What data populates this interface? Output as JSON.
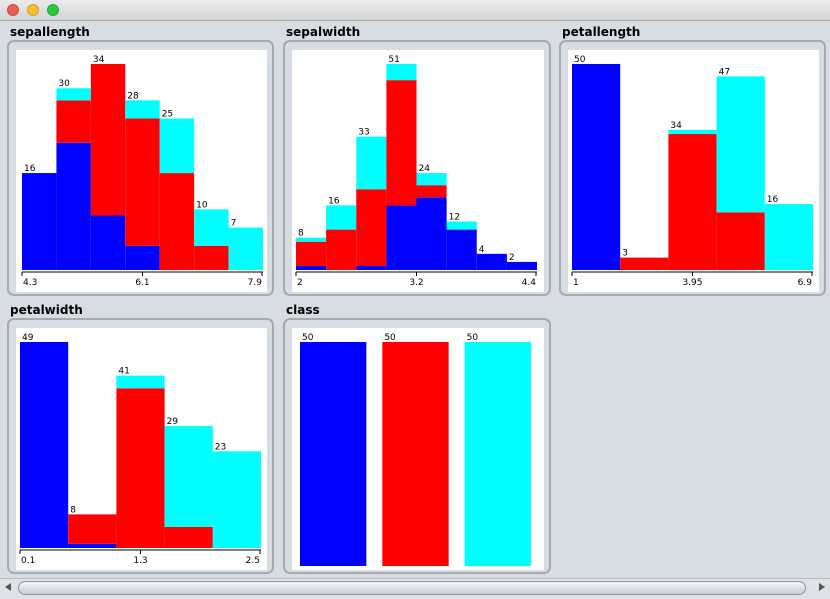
{
  "window": {
    "title": ""
  },
  "colors": {
    "setosa": "#0000ff",
    "versicolor": "#ff0000",
    "virginica": "#00ffff"
  },
  "chart_data": [
    {
      "id": "sepallength",
      "type": "bar",
      "stacked": true,
      "title": "sepallength",
      "ticks": [
        "4.3",
        "6.1",
        "7.9"
      ],
      "totals": [
        16,
        30,
        34,
        28,
        25,
        10,
        7
      ],
      "series": [
        {
          "name": "",
          "color": "#0000ff",
          "values": [
            16,
            21,
            9,
            4,
            0,
            0,
            0
          ]
        },
        {
          "name": "",
          "color": "#ff0000",
          "values": [
            0,
            7,
            25,
            21,
            16,
            4,
            0
          ]
        },
        {
          "name": "",
          "color": "#00ffff",
          "values": [
            0,
            2,
            0,
            3,
            9,
            6,
            7
          ]
        }
      ]
    },
    {
      "id": "sepalwidth",
      "type": "bar",
      "stacked": true,
      "title": "sepalwidth",
      "ticks": [
        "2",
        "3.2",
        "4.4"
      ],
      "totals": [
        8,
        16,
        33,
        51,
        24,
        12,
        4,
        2
      ],
      "series": [
        {
          "name": "",
          "color": "#0000ff",
          "values": [
            1,
            0,
            1,
            16,
            18,
            10,
            4,
            2
          ]
        },
        {
          "name": "",
          "color": "#ff0000",
          "values": [
            6,
            10,
            19,
            31,
            3,
            0,
            0,
            0
          ]
        },
        {
          "name": "",
          "color": "#00ffff",
          "values": [
            1,
            6,
            13,
            4,
            3,
            2,
            0,
            0
          ]
        }
      ]
    },
    {
      "id": "petallength",
      "type": "bar",
      "stacked": true,
      "title": "petallength",
      "ticks": [
        "1",
        "3.95",
        "6.9"
      ],
      "totals": [
        50,
        3,
        34,
        47,
        16
      ],
      "series": [
        {
          "name": "",
          "color": "#0000ff",
          "values": [
            50,
            0,
            0,
            0,
            0
          ]
        },
        {
          "name": "",
          "color": "#ff0000",
          "values": [
            0,
            3,
            33,
            14,
            0
          ]
        },
        {
          "name": "",
          "color": "#00ffff",
          "values": [
            0,
            0,
            1,
            33,
            16
          ]
        }
      ]
    },
    {
      "id": "petalwidth",
      "type": "bar",
      "stacked": true,
      "title": "petalwidth",
      "ticks": [
        "0.1",
        "1.3",
        "2.5"
      ],
      "totals": [
        49,
        8,
        41,
        29,
        23
      ],
      "series": [
        {
          "name": "",
          "color": "#0000ff",
          "values": [
            49,
            1,
            0,
            0,
            0
          ]
        },
        {
          "name": "",
          "color": "#ff0000",
          "values": [
            0,
            7,
            38,
            5,
            0
          ]
        },
        {
          "name": "",
          "color": "#00ffff",
          "values": [
            0,
            0,
            3,
            24,
            23
          ]
        }
      ]
    },
    {
      "id": "class",
      "type": "bar",
      "stacked": false,
      "title": "class",
      "ticks": [],
      "totals": [
        50,
        50,
        50
      ],
      "series": [
        {
          "name": "",
          "color": "#0000ff",
          "values": [
            50,
            0,
            0
          ]
        },
        {
          "name": "",
          "color": "#ff0000",
          "values": [
            0,
            50,
            0
          ]
        },
        {
          "name": "",
          "color": "#00ffff",
          "values": [
            0,
            0,
            50
          ]
        }
      ]
    }
  ]
}
